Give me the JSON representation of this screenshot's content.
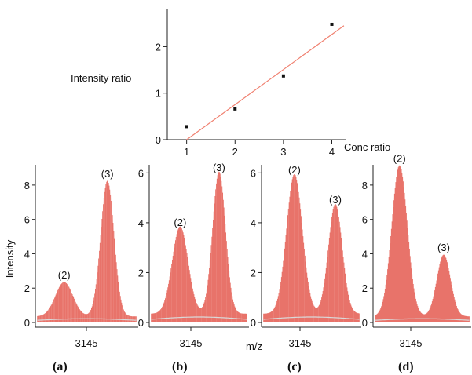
{
  "colors": {
    "spectrum": "#e8736a",
    "fit_line": "#f08070",
    "points": "#111111"
  },
  "chart_data": [
    {
      "id": "inset",
      "type": "scatter",
      "xlabel": "Conc ratio",
      "ylabel": "Intensity ratio",
      "xticks": [
        "1",
        "2",
        "3",
        "4"
      ],
      "yticks": [
        "0",
        "1",
        "2"
      ],
      "xlim": [
        0.6,
        4.3
      ],
      "ylim": [
        0,
        2.8
      ],
      "points": [
        {
          "x": 1,
          "y": 0.28
        },
        {
          "x": 2,
          "y": 0.66
        },
        {
          "x": 3,
          "y": 1.37
        },
        {
          "x": 4,
          "y": 2.48
        }
      ],
      "fit": {
        "x": [
          1,
          4.25
        ],
        "y": [
          0.0,
          2.45
        ]
      }
    },
    {
      "id": "a",
      "type": "area",
      "panel_label": "(a)",
      "xtick": "3145",
      "ylabel": "Intensity",
      "ylim": [
        0,
        9
      ],
      "yticks": [
        "0",
        "2",
        "4",
        "6",
        "8"
      ],
      "peaks": [
        {
          "label": "(2)",
          "pos": 0.28,
          "height": 2.0,
          "width": 0.085
        },
        {
          "label": "(3)",
          "pos": 0.7,
          "height": 7.9,
          "width": 0.065
        }
      ]
    },
    {
      "id": "b",
      "type": "area",
      "panel_label": "(b)",
      "xtick": "3145",
      "ylabel": "",
      "ylim": [
        0,
        6.2
      ],
      "yticks": [
        "0",
        "2",
        "4",
        "6"
      ],
      "peaks": [
        {
          "label": "(2)",
          "pos": 0.31,
          "height": 3.5,
          "width": 0.08
        },
        {
          "label": "(3)",
          "pos": 0.7,
          "height": 5.7,
          "width": 0.065
        }
      ]
    },
    {
      "id": "c",
      "type": "area",
      "panel_label": "(c)",
      "xtick": "3145",
      "ylabel": "",
      "ylim": [
        0,
        6.2
      ],
      "yticks": [
        "0",
        "2",
        "4",
        "6"
      ],
      "xlabel": "m/z",
      "peaks": [
        {
          "label": "(2)",
          "pos": 0.33,
          "height": 5.6,
          "width": 0.08
        },
        {
          "label": "(3)",
          "pos": 0.74,
          "height": 4.4,
          "width": 0.07
        }
      ]
    },
    {
      "id": "d",
      "type": "area",
      "panel_label": "(d)",
      "xtick": "3145",
      "ylabel": "",
      "ylim": [
        0,
        9
      ],
      "yticks": [
        "0",
        "2",
        "4",
        "6",
        "8"
      ],
      "peaks": [
        {
          "label": "(2)",
          "pos": 0.27,
          "height": 8.8,
          "width": 0.08
        },
        {
          "label": "(3)",
          "pos": 0.72,
          "height": 3.6,
          "width": 0.07
        }
      ]
    }
  ]
}
